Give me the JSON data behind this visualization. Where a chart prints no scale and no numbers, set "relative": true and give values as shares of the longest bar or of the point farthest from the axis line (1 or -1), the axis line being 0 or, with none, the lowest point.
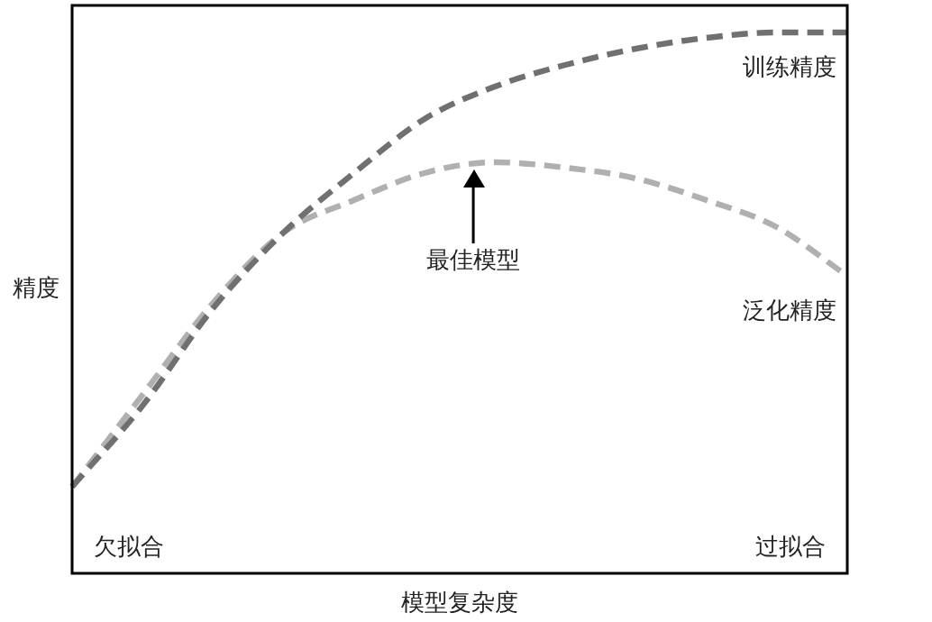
{
  "chart_data": {
    "type": "line",
    "relative": true,
    "xlabel": "模型复杂度",
    "ylabel": "精度",
    "categories": [
      null,
      null,
      null,
      null,
      null,
      null,
      null,
      null,
      null,
      null,
      null,
      null
    ],
    "series": [
      {
        "name": "训练精度",
        "color": "#707070",
        "line_style": "dashed",
        "values": [
          0.16,
          0.31,
          0.49,
          0.63,
          0.74,
          0.84,
          0.9,
          0.94,
          0.97,
          0.99,
          1.0,
          1.0
        ]
      },
      {
        "name": "泛化精度",
        "color": "#b0b0b0",
        "line_style": "dashed",
        "values": [
          0.16,
          0.33,
          0.5,
          0.63,
          0.69,
          0.74,
          0.76,
          0.75,
          0.73,
          0.69,
          0.64,
          0.55
        ]
      }
    ],
    "annotations": [
      "最佳模型",
      "欠拟合",
      "过拟合"
    ],
    "legend": false,
    "marker": "none"
  }
}
